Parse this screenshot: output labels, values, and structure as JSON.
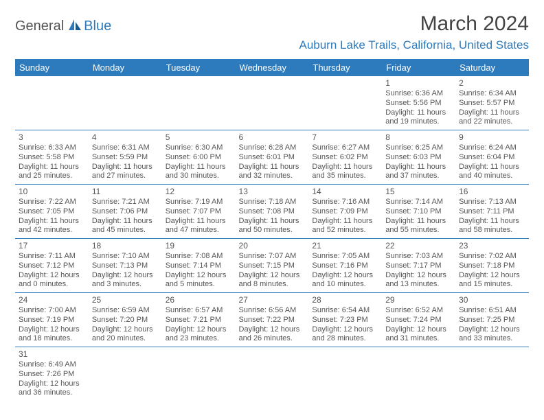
{
  "logo": {
    "part1": "General",
    "part2": "Blue"
  },
  "title": "March 2024",
  "location": "Auburn Lake Trails, California, United States",
  "weekdays": [
    "Sunday",
    "Monday",
    "Tuesday",
    "Wednesday",
    "Thursday",
    "Friday",
    "Saturday"
  ],
  "colors": {
    "header_bg": "#2d7bbd",
    "header_text": "#ffffff",
    "accent": "#2d7bbd",
    "text": "#555555",
    "background": "#ffffff"
  },
  "typography": {
    "title_fontsize": 30,
    "location_fontsize": 17,
    "weekday_fontsize": 13,
    "cell_fontsize": 11
  },
  "layout": {
    "columns": 7,
    "rows": 6,
    "start_weekday_index": 5
  },
  "cells": [
    {
      "day": 1,
      "sunrise": "6:36 AM",
      "sunset": "5:56 PM",
      "daylight": "11 hours and 19 minutes."
    },
    {
      "day": 2,
      "sunrise": "6:34 AM",
      "sunset": "5:57 PM",
      "daylight": "11 hours and 22 minutes."
    },
    {
      "day": 3,
      "sunrise": "6:33 AM",
      "sunset": "5:58 PM",
      "daylight": "11 hours and 25 minutes."
    },
    {
      "day": 4,
      "sunrise": "6:31 AM",
      "sunset": "5:59 PM",
      "daylight": "11 hours and 27 minutes."
    },
    {
      "day": 5,
      "sunrise": "6:30 AM",
      "sunset": "6:00 PM",
      "daylight": "11 hours and 30 minutes."
    },
    {
      "day": 6,
      "sunrise": "6:28 AM",
      "sunset": "6:01 PM",
      "daylight": "11 hours and 32 minutes."
    },
    {
      "day": 7,
      "sunrise": "6:27 AM",
      "sunset": "6:02 PM",
      "daylight": "11 hours and 35 minutes."
    },
    {
      "day": 8,
      "sunrise": "6:25 AM",
      "sunset": "6:03 PM",
      "daylight": "11 hours and 37 minutes."
    },
    {
      "day": 9,
      "sunrise": "6:24 AM",
      "sunset": "6:04 PM",
      "daylight": "11 hours and 40 minutes."
    },
    {
      "day": 10,
      "sunrise": "7:22 AM",
      "sunset": "7:05 PM",
      "daylight": "11 hours and 42 minutes."
    },
    {
      "day": 11,
      "sunrise": "7:21 AM",
      "sunset": "7:06 PM",
      "daylight": "11 hours and 45 minutes."
    },
    {
      "day": 12,
      "sunrise": "7:19 AM",
      "sunset": "7:07 PM",
      "daylight": "11 hours and 47 minutes."
    },
    {
      "day": 13,
      "sunrise": "7:18 AM",
      "sunset": "7:08 PM",
      "daylight": "11 hours and 50 minutes."
    },
    {
      "day": 14,
      "sunrise": "7:16 AM",
      "sunset": "7:09 PM",
      "daylight": "11 hours and 52 minutes."
    },
    {
      "day": 15,
      "sunrise": "7:14 AM",
      "sunset": "7:10 PM",
      "daylight": "11 hours and 55 minutes."
    },
    {
      "day": 16,
      "sunrise": "7:13 AM",
      "sunset": "7:11 PM",
      "daylight": "11 hours and 58 minutes."
    },
    {
      "day": 17,
      "sunrise": "7:11 AM",
      "sunset": "7:12 PM",
      "daylight": "12 hours and 0 minutes."
    },
    {
      "day": 18,
      "sunrise": "7:10 AM",
      "sunset": "7:13 PM",
      "daylight": "12 hours and 3 minutes."
    },
    {
      "day": 19,
      "sunrise": "7:08 AM",
      "sunset": "7:14 PM",
      "daylight": "12 hours and 5 minutes."
    },
    {
      "day": 20,
      "sunrise": "7:07 AM",
      "sunset": "7:15 PM",
      "daylight": "12 hours and 8 minutes."
    },
    {
      "day": 21,
      "sunrise": "7:05 AM",
      "sunset": "7:16 PM",
      "daylight": "12 hours and 10 minutes."
    },
    {
      "day": 22,
      "sunrise": "7:03 AM",
      "sunset": "7:17 PM",
      "daylight": "12 hours and 13 minutes."
    },
    {
      "day": 23,
      "sunrise": "7:02 AM",
      "sunset": "7:18 PM",
      "daylight": "12 hours and 15 minutes."
    },
    {
      "day": 24,
      "sunrise": "7:00 AM",
      "sunset": "7:19 PM",
      "daylight": "12 hours and 18 minutes."
    },
    {
      "day": 25,
      "sunrise": "6:59 AM",
      "sunset": "7:20 PM",
      "daylight": "12 hours and 20 minutes."
    },
    {
      "day": 26,
      "sunrise": "6:57 AM",
      "sunset": "7:21 PM",
      "daylight": "12 hours and 23 minutes."
    },
    {
      "day": 27,
      "sunrise": "6:56 AM",
      "sunset": "7:22 PM",
      "daylight": "12 hours and 26 minutes."
    },
    {
      "day": 28,
      "sunrise": "6:54 AM",
      "sunset": "7:23 PM",
      "daylight": "12 hours and 28 minutes."
    },
    {
      "day": 29,
      "sunrise": "6:52 AM",
      "sunset": "7:24 PM",
      "daylight": "12 hours and 31 minutes."
    },
    {
      "day": 30,
      "sunrise": "6:51 AM",
      "sunset": "7:25 PM",
      "daylight": "12 hours and 33 minutes."
    },
    {
      "day": 31,
      "sunrise": "6:49 AM",
      "sunset": "7:26 PM",
      "daylight": "12 hours and 36 minutes."
    }
  ]
}
